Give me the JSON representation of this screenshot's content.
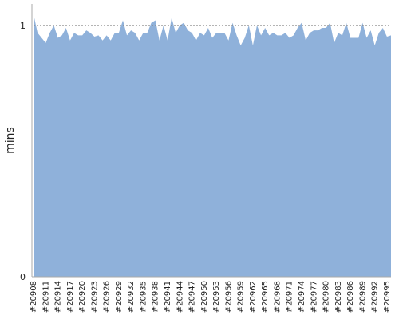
{
  "chart_data": {
    "type": "area",
    "y_label": "mins",
    "color": "#8fb1da",
    "grid": true,
    "grid_style": "dashed",
    "categories": [
      "#20908",
      null,
      null,
      "#20911",
      null,
      null,
      "#20914",
      null,
      null,
      "#20917",
      null,
      null,
      "#20920",
      null,
      null,
      "#20923",
      null,
      null,
      "#20926",
      null,
      null,
      "#20929",
      null,
      null,
      "#20932",
      null,
      null,
      "#20935",
      null,
      null,
      "#20938",
      null,
      null,
      "#20941",
      null,
      null,
      "#20944",
      null,
      null,
      "#20947",
      null,
      null,
      "#20950",
      null,
      null,
      "#20953",
      null,
      null,
      "#20956",
      null,
      null,
      "#20959",
      null,
      null,
      "#20962",
      null,
      null,
      "#20965",
      null,
      null,
      "#20968",
      null,
      null,
      "#20971",
      null,
      null,
      "#20974",
      null,
      null,
      "#20977",
      null,
      null,
      "#20980",
      null,
      null,
      "#20983",
      null,
      null,
      "#20986",
      null,
      null,
      "#20989",
      null,
      null,
      "#20992",
      null,
      null,
      "#20995",
      null
    ],
    "values": [
      1.044,
      0.97,
      0.95,
      0.93,
      0.97,
      1.0,
      0.95,
      0.96,
      0.99,
      0.94,
      0.97,
      0.96,
      0.96,
      0.98,
      0.97,
      0.955,
      0.96,
      0.94,
      0.96,
      0.94,
      0.97,
      0.97,
      1.02,
      0.96,
      0.98,
      0.97,
      0.94,
      0.97,
      0.97,
      1.01,
      1.02,
      0.94,
      1.0,
      0.94,
      1.03,
      0.97,
      1.0,
      1.01,
      0.98,
      0.97,
      0.94,
      0.97,
      0.96,
      0.99,
      0.95,
      0.97,
      0.97,
      0.97,
      0.94,
      1.01,
      0.96,
      0.92,
      0.95,
      1.0,
      0.92,
      1.0,
      0.96,
      0.99,
      0.96,
      0.97,
      0.96,
      0.96,
      0.97,
      0.95,
      0.96,
      0.99,
      1.01,
      0.94,
      0.97,
      0.98,
      0.98,
      0.99,
      0.99,
      1.01,
      0.93,
      0.97,
      0.96,
      1.01,
      0.95,
      0.95,
      0.95,
      1.01,
      0.95,
      0.98,
      0.92,
      0.97,
      0.99,
      0.955,
      0.96
    ],
    "ylim": [
      0,
      1.085
    ],
    "yticks": [
      0,
      1
    ]
  }
}
